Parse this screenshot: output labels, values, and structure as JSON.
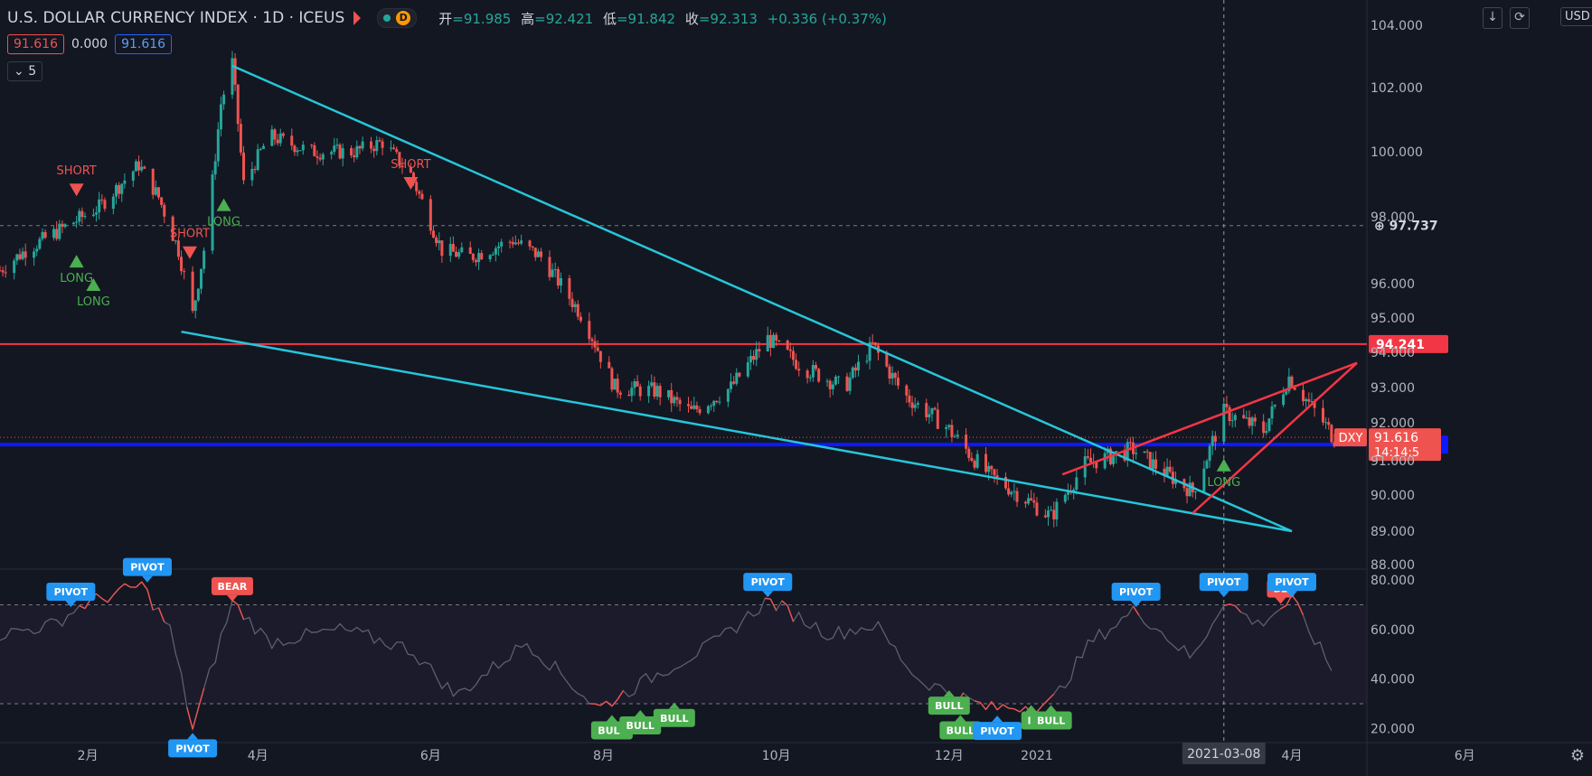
{
  "header": {
    "title": "U.S. DOLLAR CURRENCY INDEX · 1D · ICEUS",
    "d_badge": "D",
    "ohlc": {
      "open_label": "开",
      "open": "=91.985",
      "high_label": "高",
      "high": "=92.421",
      "low_label": "低",
      "low": "=91.842",
      "close_label": "收",
      "close": "=92.313",
      "change": "+0.336 (+0.37%)"
    }
  },
  "indicator_values": {
    "v1": "91.616",
    "v2": "0.000",
    "v3": "91.616"
  },
  "collapse_label": "5",
  "toolbar": {
    "down_icon": "↓",
    "reset_icon": "⟳",
    "currency": "USD"
  },
  "colors": {
    "bg": "#131722",
    "up": "#26a69a",
    "down": "#ef5350",
    "cyan": "#26c6da",
    "red_line": "#f23645",
    "blue_line": "#0d19ff",
    "pivot": "#2196f3",
    "bull": "#4caf50",
    "bear": "#ef5350"
  },
  "chart_data": [
    {
      "type": "candlestick",
      "title": "U.S. DOLLAR CURRENCY INDEX",
      "ylim": [
        87.6,
        103.9
      ],
      "y_ticks": [
        "88.000",
        "89.000",
        "90.000",
        "91.000",
        "92.000",
        "93.000",
        "94.000",
        "95.000",
        "96.000",
        "98.000",
        "100.000",
        "102.000",
        "104.000"
      ],
      "x_ticks": [
        "2月",
        "4月",
        "6月",
        "8月",
        "10月",
        "12月",
        "2021",
        "4月",
        "6月"
      ],
      "close_path": [
        [
          "2020-01-01",
          96.4
        ],
        [
          "2020-01-10",
          97.0
        ],
        [
          "2020-01-22",
          97.6
        ],
        [
          "2020-02-05",
          98.3
        ],
        [
          "2020-02-19",
          99.6
        ],
        [
          "2020-02-26",
          98.6
        ],
        [
          "2020-03-04",
          97.0
        ],
        [
          "2020-03-09",
          95.1
        ],
        [
          "2020-03-14",
          97.5
        ],
        [
          "2020-03-19",
          101.5
        ],
        [
          "2020-03-23",
          102.8
        ],
        [
          "2020-03-27",
          99.0
        ],
        [
          "2020-04-05",
          100.5
        ],
        [
          "2020-04-20",
          100.0
        ],
        [
          "2020-05-05",
          100.0
        ],
        [
          "2020-05-15",
          100.3
        ],
        [
          "2020-05-25",
          99.3
        ],
        [
          "2020-06-05",
          97.0
        ],
        [
          "2020-06-15",
          96.8
        ],
        [
          "2020-06-30",
          97.3
        ],
        [
          "2020-07-10",
          96.8
        ],
        [
          "2020-07-25",
          95.0
        ],
        [
          "2020-08-05",
          93.0
        ],
        [
          "2020-08-20",
          92.9
        ],
        [
          "2020-09-01",
          92.3
        ],
        [
          "2020-09-15",
          93.0
        ],
        [
          "2020-09-28",
          94.4
        ],
        [
          "2020-10-10",
          93.6
        ],
        [
          "2020-10-25",
          93.0
        ],
        [
          "2020-11-04",
          94.2
        ],
        [
          "2020-11-15",
          92.8
        ],
        [
          "2020-11-30",
          91.9
        ],
        [
          "2020-12-15",
          90.6
        ],
        [
          "2021-01-06",
          89.4
        ],
        [
          "2021-01-18",
          90.9
        ],
        [
          "2021-02-04",
          91.3
        ],
        [
          "2021-02-25",
          90.1
        ],
        [
          "2021-03-08",
          92.3
        ],
        [
          "2021-03-22",
          91.8
        ],
        [
          "2021-03-31",
          93.3
        ],
        [
          "2021-04-16",
          91.6
        ]
      ],
      "horizontal_levels": [
        {
          "label": "94.241",
          "value": 94.241,
          "color": "#f23645"
        },
        {
          "label": "91.426",
          "value": 91.426,
          "color": "#0d19ff"
        }
      ],
      "dashed_levels": [
        {
          "label": "97.737",
          "value": 97.737
        }
      ],
      "last_price": {
        "symbol": "DXY",
        "value": "91.616",
        "countdown": "14:14:5"
      },
      "crosshair_date": "2021-03-08",
      "trendlines": [
        {
          "color": "#26c6da",
          "from": [
            "2020-03-23",
            102.7
          ],
          "to": [
            "2021-04-01",
            89.0
          ]
        },
        {
          "color": "#26c6da",
          "from": [
            "2020-03-05",
            94.6
          ],
          "to": [
            "2021-04-01",
            89.0
          ]
        },
        {
          "color": "#f23645",
          "from": [
            "2021-01-10",
            90.6
          ],
          "to": [
            "2021-04-24",
            93.7
          ]
        },
        {
          "color": "#f23645",
          "from": [
            "2021-02-25",
            89.5
          ],
          "to": [
            "2021-04-24",
            93.7
          ]
        }
      ],
      "signals": [
        {
          "type": "SHORT",
          "date": "2020-01-28",
          "value": 98.8
        },
        {
          "type": "LONG",
          "date": "2020-01-28",
          "value": 96.7
        },
        {
          "type": "LONG",
          "date": "2020-02-03",
          "value": 96.0
        },
        {
          "type": "SHORT",
          "date": "2020-03-08",
          "value": 96.9
        },
        {
          "type": "LONG",
          "date": "2020-03-20",
          "value": 98.4
        },
        {
          "type": "SHORT",
          "date": "2020-05-25",
          "value": 99.0
        },
        {
          "type": "LONG",
          "date": "2021-03-08",
          "value": 90.9
        }
      ]
    },
    {
      "type": "line",
      "title": "RSI",
      "ylim": [
        15,
        83
      ],
      "y_ticks": [
        "20.000",
        "40.000",
        "60.000",
        "80.000"
      ],
      "levels": [
        70,
        30
      ],
      "series": [
        [
          "2020-01-01",
          58
        ],
        [
          "2020-01-20",
          62
        ],
        [
          "2020-01-30",
          70
        ],
        [
          "2020-02-20",
          78
        ],
        [
          "2020-03-01",
          60
        ],
        [
          "2020-03-09",
          20
        ],
        [
          "2020-03-23",
          71
        ],
        [
          "2020-04-05",
          55
        ],
        [
          "2020-05-01",
          60
        ],
        [
          "2020-05-25",
          52
        ],
        [
          "2020-06-10",
          33
        ],
        [
          "2020-07-05",
          55
        ],
        [
          "2020-07-30",
          28
        ],
        [
          "2020-08-20",
          42
        ],
        [
          "2020-09-10",
          55
        ],
        [
          "2020-09-28",
          72
        ],
        [
          "2020-10-20",
          58
        ],
        [
          "2020-11-05",
          62
        ],
        [
          "2020-11-20",
          40
        ],
        [
          "2020-12-15",
          28
        ],
        [
          "2021-01-06",
          30
        ],
        [
          "2021-01-20",
          55
        ],
        [
          "2021-02-05",
          68
        ],
        [
          "2021-02-25",
          48
        ],
        [
          "2021-03-08",
          72
        ],
        [
          "2021-03-20",
          62
        ],
        [
          "2021-04-01",
          72
        ],
        [
          "2021-04-16",
          42
        ]
      ],
      "labels": [
        {
          "text": "PIVOT",
          "date": "2020-01-26",
          "value": 68,
          "kind": "pivot_top"
        },
        {
          "text": "PIVOT",
          "date": "2020-02-22",
          "value": 78,
          "kind": "pivot_top"
        },
        {
          "text": "BEAR",
          "date": "2020-03-23",
          "value": 71,
          "kind": "bear"
        },
        {
          "text": "PIVOT",
          "date": "2020-03-09",
          "value": 20,
          "kind": "pivot_bottom"
        },
        {
          "text": "BULL",
          "date": "2020-08-04",
          "value": 28,
          "kind": "bull"
        },
        {
          "text": "BULL",
          "date": "2020-08-14",
          "value": 30,
          "kind": "bull"
        },
        {
          "text": "BULL",
          "date": "2020-08-26",
          "value": 33,
          "kind": "bull"
        },
        {
          "text": "PIVOT",
          "date": "2020-09-28",
          "value": 72,
          "kind": "pivot_top"
        },
        {
          "text": "BULL",
          "date": "2020-12-01",
          "value": 38,
          "kind": "bull"
        },
        {
          "text": "BULL",
          "date": "2020-12-05",
          "value": 28,
          "kind": "bull"
        },
        {
          "text": "PIVOT",
          "date": "2020-12-18",
          "value": 27,
          "kind": "pivot_bottom"
        },
        {
          "text": "B",
          "date": "2020-12-30",
          "value": 32,
          "kind": "bull"
        },
        {
          "text": "BULL",
          "date": "2021-01-06",
          "value": 32,
          "kind": "bull"
        },
        {
          "text": "PIVOT",
          "date": "2021-02-05",
          "value": 68,
          "kind": "pivot_top"
        },
        {
          "text": "PIVOT",
          "date": "2021-03-08",
          "value": 72,
          "kind": "pivot_top"
        },
        {
          "text": "BE",
          "date": "2021-03-28",
          "value": 70,
          "kind": "bear"
        },
        {
          "text": "PIVOT",
          "date": "2021-04-01",
          "value": 72,
          "kind": "pivot_top"
        }
      ]
    }
  ]
}
